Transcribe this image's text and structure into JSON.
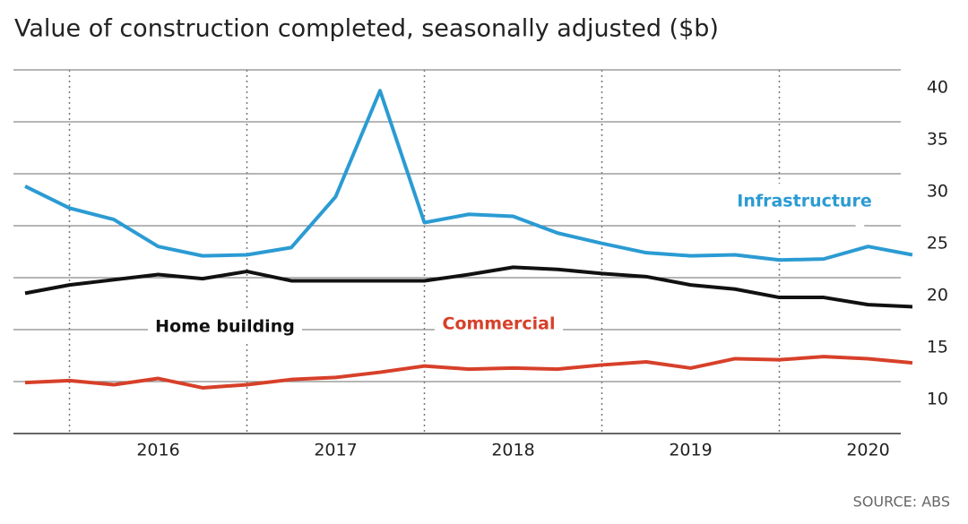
{
  "chart_data": {
    "type": "line",
    "title": "Value of construction completed, seasonally adjusted ($b)",
    "source": "SOURCE: ABS",
    "categories": [
      null,
      null,
      null,
      "2016",
      null,
      null,
      null,
      "2017",
      null,
      null,
      null,
      "2018",
      null,
      null,
      null,
      "2019",
      null,
      null,
      null,
      "2020",
      null
    ],
    "series": [
      {
        "name": "Infrastructure",
        "color": "#2b9bd3",
        "values": [
          28.8,
          26.7,
          25.6,
          23.0,
          22.1,
          22.2,
          22.9,
          27.8,
          38.0,
          25.3,
          26.1,
          25.9,
          24.3,
          23.3,
          22.4,
          22.1,
          22.2,
          21.7,
          21.8,
          23.0,
          22.2
        ]
      },
      {
        "name": "Home building",
        "color": "#111111",
        "values": [
          18.5,
          19.3,
          19.8,
          20.3,
          19.9,
          20.6,
          19.7,
          19.7,
          19.7,
          19.7,
          20.3,
          21.0,
          20.8,
          20.4,
          20.1,
          19.3,
          18.9,
          18.1,
          18.1,
          17.4,
          17.2
        ]
      },
      {
        "name": "Commercial",
        "color": "#d7402a",
        "values": [
          9.9,
          10.1,
          9.7,
          10.3,
          9.4,
          9.7,
          10.2,
          10.4,
          10.9,
          11.5,
          11.2,
          11.3,
          11.2,
          11.6,
          11.9,
          11.3,
          12.2,
          12.1,
          12.4,
          12.2,
          11.8
        ]
      }
    ],
    "ylim": [
      5,
      40
    ],
    "yticks": [
      10,
      15,
      20,
      25,
      30,
      35,
      40
    ],
    "grid": true
  }
}
